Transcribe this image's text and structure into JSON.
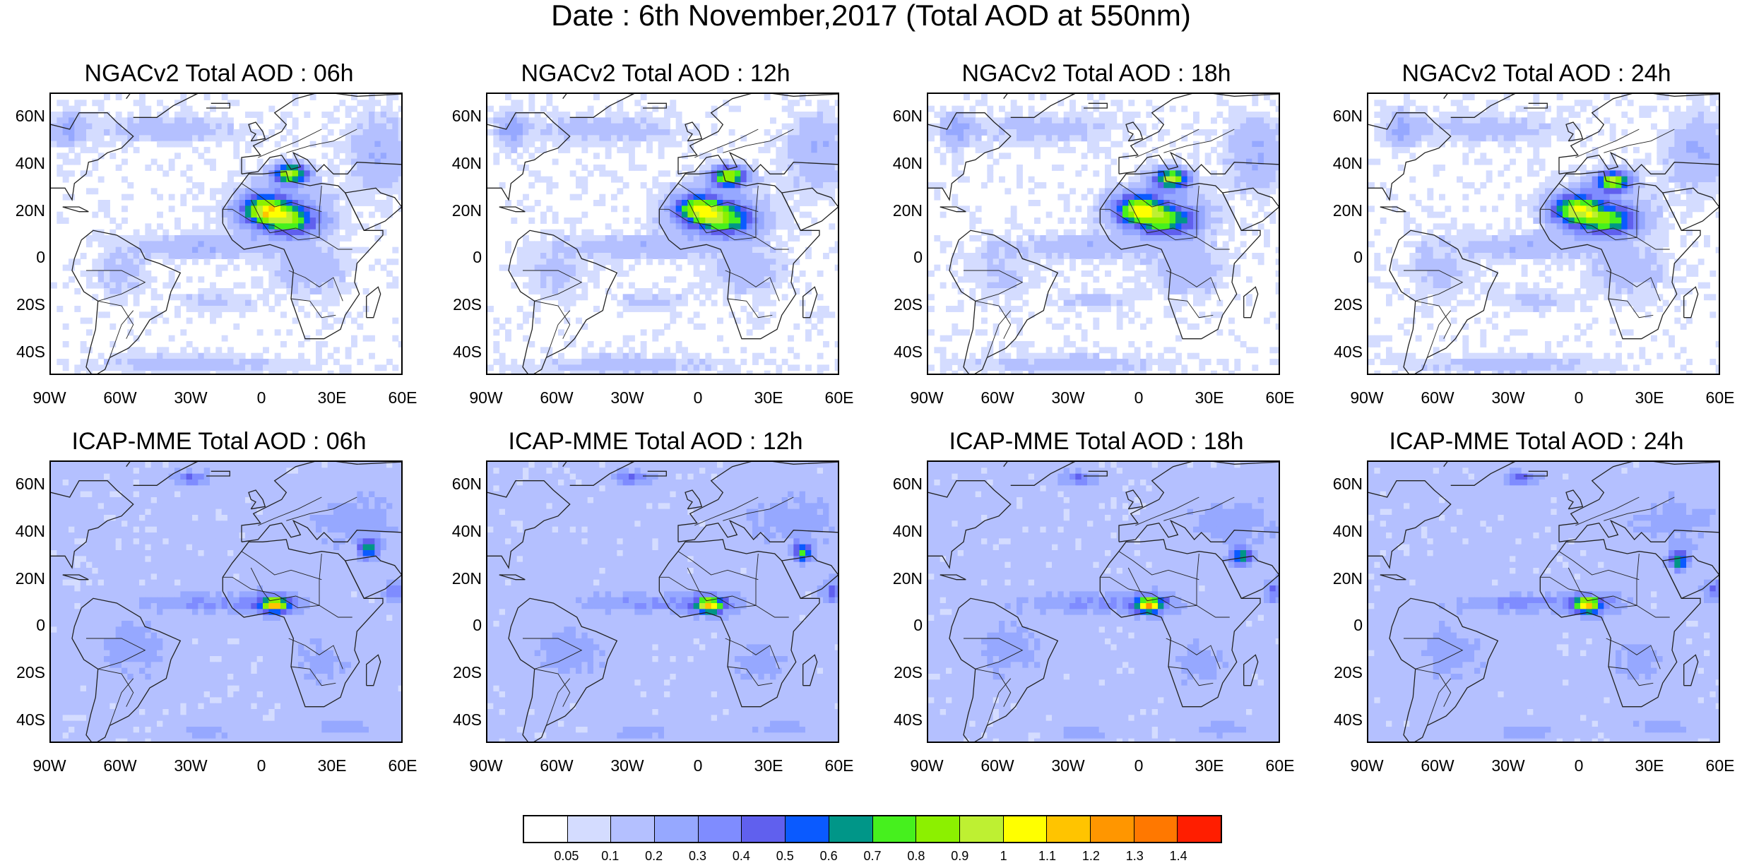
{
  "figure": {
    "title": "Date : 6th November,2017 (Total AOD at 550nm)"
  },
  "axes": {
    "lat_labels": [
      "60N",
      "40N",
      "20N",
      "0",
      "20S",
      "40S"
    ],
    "lat_values": [
      60,
      40,
      20,
      0,
      -20,
      -40
    ],
    "lon_labels": [
      "90W",
      "60W",
      "30W",
      "0",
      "30E",
      "60E"
    ],
    "lon_values": [
      -90,
      -60,
      -30,
      0,
      30,
      60
    ],
    "lat_range": [
      -50,
      70
    ],
    "lon_range": [
      -90,
      60
    ]
  },
  "panels": [
    {
      "title": "NGACv2 Total AOD : 06h",
      "model": "ngac",
      "hour": 6
    },
    {
      "title": "NGACv2 Total AOD : 12h",
      "model": "ngac",
      "hour": 12
    },
    {
      "title": "NGACv2 Total AOD : 18h",
      "model": "ngac",
      "hour": 18
    },
    {
      "title": "NGACv2 Total AOD : 24h",
      "model": "ngac",
      "hour": 24
    },
    {
      "title": "ICAP-MME Total AOD : 06h",
      "model": "icap",
      "hour": 6
    },
    {
      "title": "ICAP-MME Total AOD : 12h",
      "model": "icap",
      "hour": 12
    },
    {
      "title": "ICAP-MME Total AOD : 18h",
      "model": "icap",
      "hour": 18
    },
    {
      "title": "ICAP-MME Total AOD : 24h",
      "model": "icap",
      "hour": 24
    }
  ],
  "colorbar": {
    "labels": [
      "0.05",
      "0.1",
      "0.2",
      "0.3",
      "0.4",
      "0.5",
      "0.6",
      "0.7",
      "0.8",
      "0.9",
      "1",
      "1.1",
      "1.2",
      "1.3",
      "1.4"
    ],
    "colors": [
      "#ffffff",
      "#d4dcff",
      "#b4c0ff",
      "#96a8ff",
      "#7f8cff",
      "#6060ee",
      "#0a5aff",
      "#009688",
      "#46f01e",
      "#8cf000",
      "#bef032",
      "#ffff00",
      "#ffc400",
      "#ff9600",
      "#ff7800",
      "#ff1e00"
    ]
  }
}
